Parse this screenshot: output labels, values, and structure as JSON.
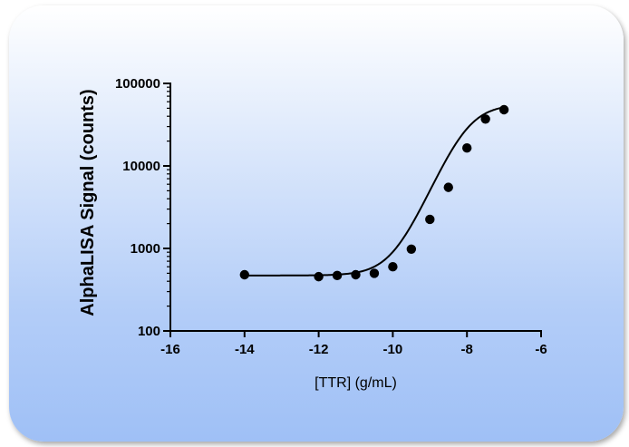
{
  "chart_data": {
    "type": "line",
    "title": "",
    "xlabel": "[TTR] (g/mL)",
    "ylabel": "AlphaLISA Signal (counts)",
    "xlim": [
      -16,
      -6
    ],
    "ylim": [
      100,
      100000
    ],
    "yscale": "log",
    "x_ticks": [
      -16,
      -14,
      -12,
      -10,
      -8,
      -6
    ],
    "x_tick_labels": [
      "-16",
      "-14",
      "-12",
      "-10",
      "-8",
      "-6"
    ],
    "y_ticks": [
      100,
      1000,
      10000,
      100000
    ],
    "y_tick_labels": [
      "100",
      "1000",
      "10000",
      "100000"
    ],
    "grid": false,
    "legend": "none",
    "colors": {
      "points": "#000000",
      "line": "#000000",
      "panel_top": "#ffffff",
      "panel_bottom": "#9fc0f6"
    },
    "series": [
      {
        "x": [
          -14,
          -12,
          -11.5,
          -11,
          -10.5,
          -10,
          -9.5,
          -9,
          -8.5,
          -8,
          -7.5,
          -7
        ],
        "y": [
          480,
          455,
          470,
          480,
          500,
          600,
          980,
          2250,
          5500,
          16500,
          37000,
          48000
        ]
      }
    ],
    "fit": {
      "model": "four-parameter logistic",
      "bottom": 470,
      "top": 56000,
      "log_ec50": -8.0,
      "hill_slope": 1.05
    }
  }
}
